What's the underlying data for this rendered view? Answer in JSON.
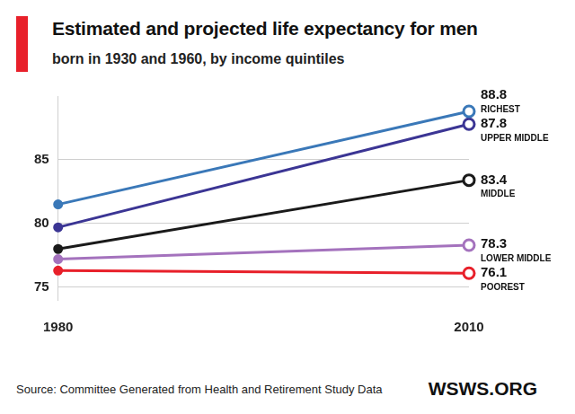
{
  "chart_data": {
    "type": "line",
    "title": "Estimated and projected life expectancy for men",
    "subtitle": "born in 1930 and 1960, by income quintiles",
    "categories": [
      "1980",
      "2010"
    ],
    "series": [
      {
        "name": "RICHEST",
        "color": "#3a78b8",
        "values": [
          81.5,
          88.8
        ],
        "value_labels": [
          null,
          "88.8"
        ]
      },
      {
        "name": "UPPER MIDDLE",
        "color": "#3b3594",
        "values": [
          79.7,
          87.8
        ],
        "value_labels": [
          null,
          "87.8"
        ]
      },
      {
        "name": "MIDDLE",
        "color": "#1a1a1a",
        "values": [
          78.0,
          83.4
        ],
        "value_labels": [
          null,
          "83.4"
        ]
      },
      {
        "name": "LOWER MIDDLE",
        "color": "#a472bd",
        "values": [
          77.2,
          78.3
        ],
        "value_labels": [
          null,
          "78.3"
        ]
      },
      {
        "name": "POOREST",
        "color": "#e8202a",
        "values": [
          76.3,
          76.1
        ],
        "value_labels": [
          null,
          "76.1"
        ]
      }
    ],
    "ylim": [
      74,
      90
    ],
    "yticks": [
      75,
      80,
      85
    ],
    "grid": true,
    "data_labels": true,
    "marker": "circle",
    "source": "Source: Committee Generated from Health and Retirement Study Data",
    "credit": "WSWS.ORG"
  }
}
